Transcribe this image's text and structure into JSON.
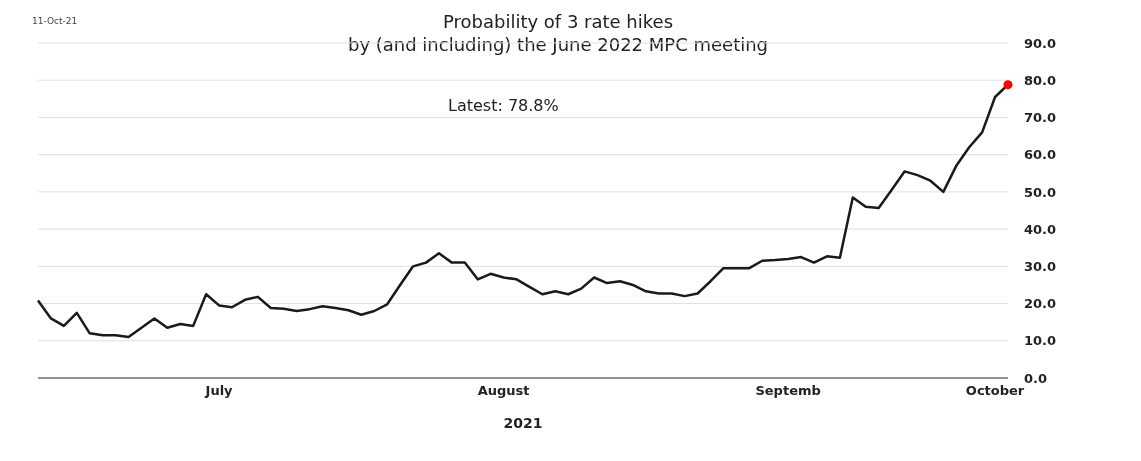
{
  "chart_data": {
    "type": "line",
    "title": "Probability of 3 rate hikes",
    "subtitle": "by (and including) the June 2022 MPC meeting",
    "xlabel": "2021",
    "annotations": [
      "11-Oct-21",
      "Latest:  78.8%"
    ],
    "categories": [
      null,
      null,
      null,
      null,
      null,
      null,
      null,
      null,
      null,
      null,
      null,
      null,
      null,
      null,
      "July",
      null,
      null,
      null,
      null,
      null,
      null,
      null,
      null,
      null,
      null,
      null,
      null,
      null,
      null,
      null,
      null,
      null,
      null,
      null,
      null,
      null,
      "August",
      null,
      null,
      null,
      null,
      null,
      null,
      null,
      null,
      null,
      null,
      null,
      null,
      null,
      null,
      null,
      null,
      null,
      null,
      null,
      null,
      null,
      "Septemb",
      null,
      null,
      null,
      null,
      null,
      null,
      null,
      null,
      null,
      null,
      null,
      null,
      null,
      null,
      null,
      "October",
      null
    ],
    "series": [
      {
        "color": "#1a1a1a",
        "marker": "none",
        "values": [
          20.8,
          16,
          14,
          17.5,
          12,
          11.5,
          11.5,
          11,
          13.5,
          16,
          13.5,
          14.5,
          14,
          22.5,
          19.5,
          19,
          21,
          21.8,
          18.8,
          18.6,
          18,
          18.5,
          19.3,
          18.8,
          18.2,
          17,
          18,
          19.8,
          25,
          30,
          31,
          33.5,
          31,
          31,
          26.5,
          28,
          27,
          26.5,
          24.5,
          22.5,
          23.3,
          22.5,
          24,
          27,
          25.5,
          26,
          25,
          23.3,
          22.7,
          22.7,
          22,
          22.7,
          26,
          29.5,
          29.5,
          29.5,
          31.5,
          31.7,
          32,
          32.5,
          31,
          32.7,
          32.3,
          48.5,
          46,
          45.7,
          50.5,
          55.5,
          54.5,
          53,
          50,
          57,
          62,
          66,
          75.5,
          78.8
        ]
      },
      {
        "type": "scatter",
        "color": "#ff0000",
        "marker": "circle",
        "values": [
          null,
          null,
          null,
          null,
          null,
          null,
          null,
          null,
          null,
          null,
          null,
          null,
          null,
          null,
          null,
          null,
          null,
          null,
          null,
          null,
          null,
          null,
          null,
          null,
          null,
          null,
          null,
          null,
          null,
          null,
          null,
          null,
          null,
          null,
          null,
          null,
          null,
          null,
          null,
          null,
          null,
          null,
          null,
          null,
          null,
          null,
          null,
          null,
          null,
          null,
          null,
          null,
          null,
          null,
          null,
          null,
          null,
          null,
          null,
          null,
          null,
          null,
          null,
          null,
          null,
          null,
          null,
          null,
          null,
          null,
          null,
          null,
          null,
          null,
          null,
          78.8
        ]
      }
    ],
    "ylim": [
      0,
      90
    ],
    "yticks": [
      {
        "value": 0,
        "label": "0.0"
      },
      {
        "value": 10,
        "label": "10.0"
      },
      {
        "value": 20,
        "label": "20.0"
      },
      {
        "value": 30,
        "label": "30.0"
      },
      {
        "value": 40,
        "label": "40.0"
      },
      {
        "value": 50,
        "label": "50.0"
      },
      {
        "value": 60,
        "label": "60.0"
      },
      {
        "value": 70,
        "label": "70.0"
      },
      {
        "value": 80,
        "label": "80.0"
      },
      {
        "value": 90,
        "label": "90.0"
      }
    ],
    "grid": "y",
    "legend": false
  }
}
